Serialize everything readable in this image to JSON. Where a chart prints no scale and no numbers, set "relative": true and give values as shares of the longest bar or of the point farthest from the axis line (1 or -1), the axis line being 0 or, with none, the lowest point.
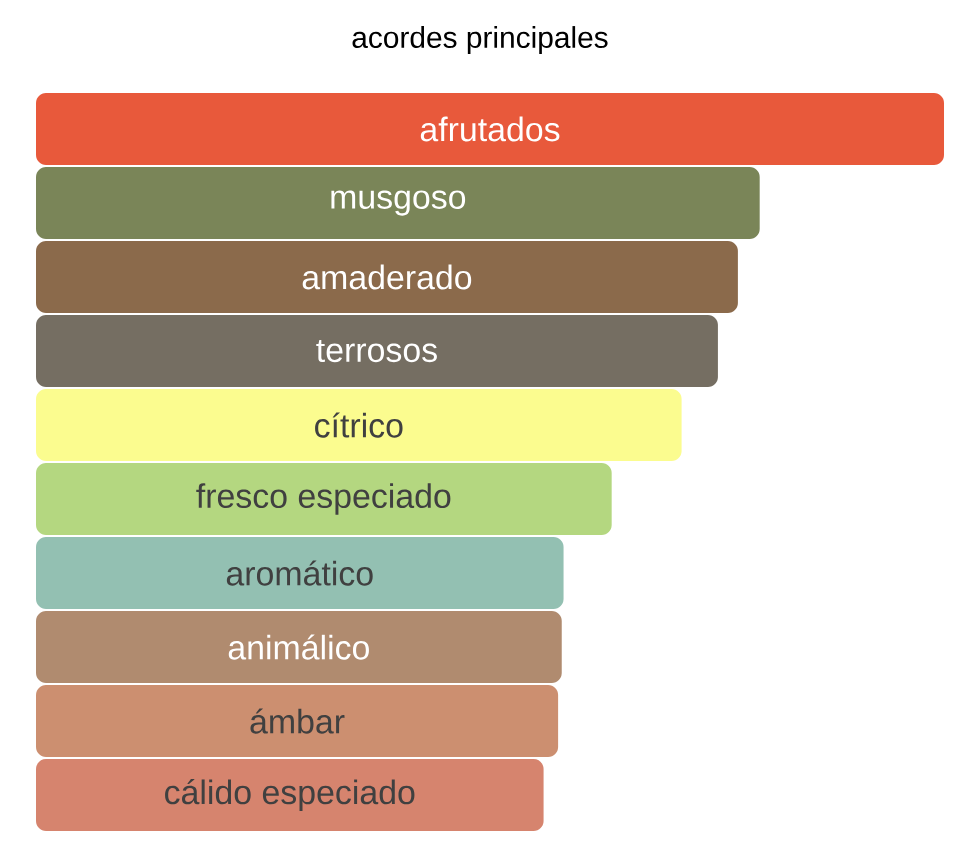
{
  "chart_data": {
    "type": "bar",
    "orientation": "horizontal",
    "relative": true,
    "title": "acordes principales",
    "categories": [
      "afrutados",
      "musgoso",
      "amaderado",
      "terrosos",
      "cítrico",
      "fresco especiado",
      "aromático",
      "animálico",
      "ámbar",
      "cálido especiado"
    ],
    "values": [
      1,
      0.797,
      0.773,
      0.751,
      0.711,
      0.634,
      0.581,
      0.579,
      0.575,
      0.559
    ],
    "colors": [
      "#e8593b",
      "#7a8558",
      "#8b6a4b",
      "#756e62",
      "#fbfc8f",
      "#b4d780",
      "#93c0b2",
      "#b08b6f",
      "#cc8f70",
      "#d6846e"
    ]
  }
}
